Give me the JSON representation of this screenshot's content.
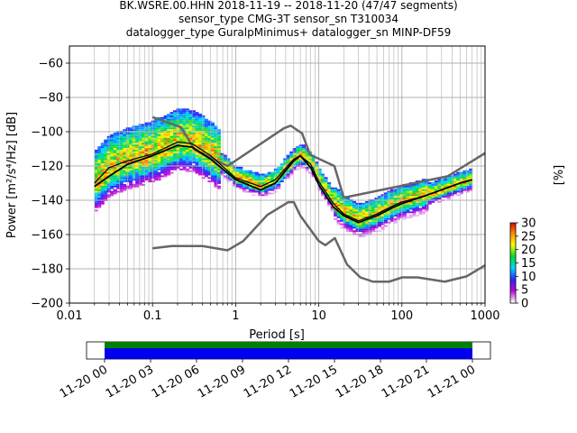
{
  "title_lines": [
    "BK.WSRE.00.HHN   2018-11-19 -- 2018-11-20  (47/47 segments)",
    "sensor_type CMG-3T sensor_sn T310034",
    "datalogger_type GuralpMinimus+ datalogger_sn MINP-DF59"
  ],
  "chart_data": {
    "type": "heatmap",
    "xlabel": "Period [s]",
    "ylabel": "Power [m²/s⁴/Hz] [dB]",
    "xscale": "log",
    "xlim": [
      0.01,
      1000
    ],
    "ylim": [
      -200,
      -50
    ],
    "xticks": [
      0.01,
      0.1,
      1,
      10,
      100,
      1000
    ],
    "xtick_labels": [
      "0.01",
      "0.1",
      "1",
      "10",
      "100",
      "1000"
    ],
    "yticks": [
      -200,
      -180,
      -160,
      -140,
      -120,
      -100,
      -80,
      -60
    ],
    "grid": true,
    "colorbar": {
      "label": "[%]",
      "range": [
        0,
        30
      ],
      "ticks": [
        0,
        5,
        10,
        15,
        20,
        25,
        30
      ],
      "colormap": "pqlx"
    },
    "median_curve": {
      "x": [
        0.02,
        0.03,
        0.05,
        0.1,
        0.2,
        0.3,
        0.5,
        1,
        2,
        3,
        5,
        6,
        8,
        10,
        15,
        20,
        30,
        50,
        80,
        100,
        200,
        500,
        700
      ],
      "y": [
        -130,
        -121,
        -117,
        -113,
        -106,
        -107,
        -114,
        -127,
        -132,
        -128,
        -116,
        -114,
        -119,
        -129,
        -142,
        -148,
        -152,
        -148,
        -143,
        -141,
        -137,
        -130,
        -128
      ]
    },
    "mode_curve": {
      "x": [
        0.02,
        0.03,
        0.05,
        0.1,
        0.2,
        0.3,
        0.5,
        1,
        2,
        3,
        5,
        6,
        8,
        10,
        15,
        20,
        30,
        50,
        80,
        100,
        200,
        500,
        700
      ],
      "y": [
        -132,
        -126,
        -119,
        -114,
        -108,
        -109,
        -116,
        -128,
        -134,
        -130,
        -117,
        -114,
        -121,
        -131,
        -144,
        -149,
        -153,
        -149,
        -144,
        -142,
        -137,
        -130,
        -128
      ]
    },
    "nhnm": {
      "x": [
        0.1,
        0.22,
        0.32,
        0.8,
        3.8,
        4.6,
        6.3,
        7.9,
        15.4,
        20,
        354.8,
        1000
      ],
      "y": [
        -91.5,
        -97.4,
        -110.5,
        -120,
        -98,
        -96.5,
        -101,
        -113.5,
        -120,
        -138.5,
        -126,
        -112.5
      ]
    },
    "nlnm": {
      "x": [
        0.1,
        0.17,
        0.4,
        0.8,
        1.24,
        2.4,
        4.3,
        5,
        6,
        10,
        12,
        15.6,
        21.9,
        31.6,
        45,
        70,
        101,
        154,
        328,
        600,
        1000
      ],
      "y": [
        -168,
        -166.7,
        -166.7,
        -169.2,
        -163.7,
        -148.6,
        -141.1,
        -141.1,
        -149,
        -163.8,
        -166.2,
        -162.1,
        -177.5,
        -185,
        -187.5,
        -187.5,
        -185,
        -185,
        -187.5,
        -184.4,
        -178
      ]
    },
    "segment_timeline": {
      "start_label": "11-20 00",
      "ticks": [
        "11-20 00",
        "11-20 03",
        "11-20 06",
        "11-20 09",
        "11-20 12",
        "11-20 15",
        "11-20 18",
        "11-20 21",
        "11-21 00"
      ],
      "coverage_fraction": 1.0,
      "colors": {
        "used": "#0000ee",
        "available": "#008000"
      }
    }
  }
}
